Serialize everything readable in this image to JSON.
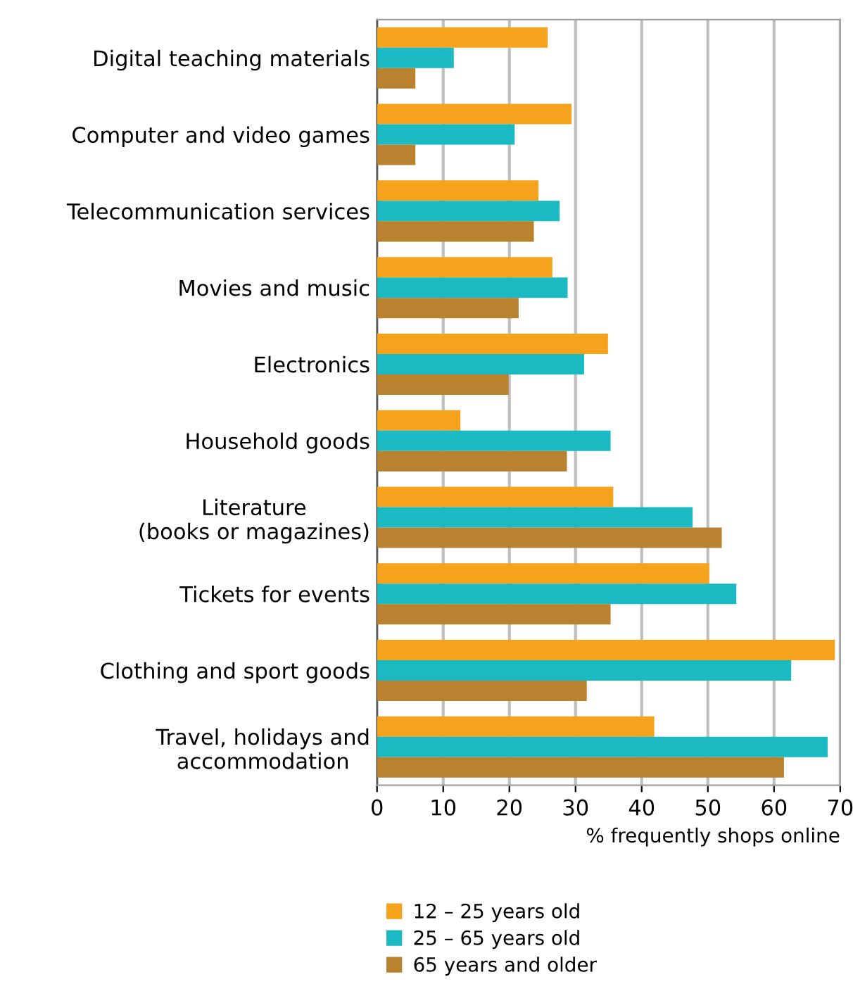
{
  "chart_data": {
    "type": "bar",
    "orientation": "horizontal",
    "xlabel": "% frequently shops online",
    "categories": [
      "Digital teaching materials",
      "Computer and video games",
      "Telecommunication services",
      "Movies and music",
      "Electronics",
      "Household goods",
      "Literature\n(books or magazines)",
      "Tickets for events",
      "Clothing and sport goods",
      "Travel, holidays and\naccommodation"
    ],
    "series": [
      {
        "name": "12 – 25 years old",
        "color": "#f5a21c",
        "values": [
          25.8,
          29.4,
          24.4,
          26.5,
          34.9,
          12.6,
          35.7,
          50.2,
          69.2,
          41.9
        ]
      },
      {
        "name": "25 – 65 years old",
        "color": "#1bb9c2",
        "values": [
          11.6,
          20.8,
          27.6,
          28.8,
          31.3,
          35.3,
          47.7,
          54.3,
          62.6,
          68.1
        ]
      },
      {
        "name": "65 years and older",
        "color": "#b8822f",
        "values": [
          5.8,
          5.8,
          23.7,
          21.4,
          19.9,
          28.7,
          52.1,
          35.3,
          31.7,
          61.5
        ]
      }
    ],
    "xlim": [
      0,
      70
    ],
    "xticks": [
      0,
      10,
      20,
      30,
      40,
      50,
      60,
      70
    ],
    "grid": "x",
    "legend": "bottom"
  }
}
